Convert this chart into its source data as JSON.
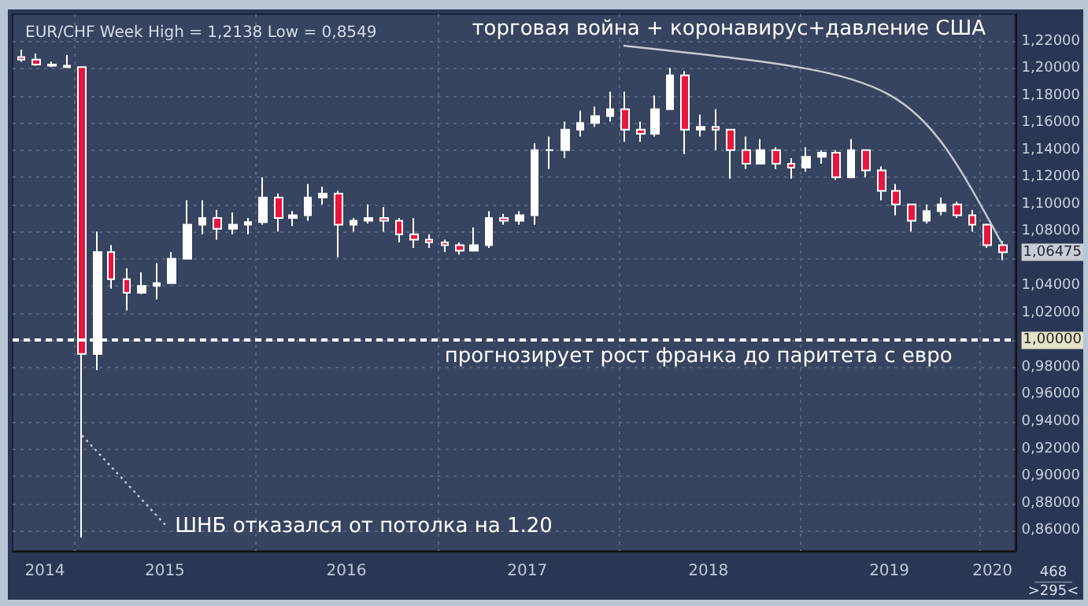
{
  "chart_data": {
    "type": "candlestick",
    "title": "EUR/CHF Week High = 1,2138 Low = 0,8549",
    "x": [
      "2014-09-15",
      "2014-10-15",
      "2014-11-15",
      "2014-12-15",
      "2015-01-15",
      "2015-02-15",
      "2015-03-15",
      "2015-04-15",
      "2015-05-15",
      "2015-06-15",
      "2015-07-15",
      "2015-08-15",
      "2015-09-15",
      "2015-10-15",
      "2015-11-15",
      "2015-12-15",
      "2016-01-15",
      "2016-02-15",
      "2016-03-15",
      "2016-04-15",
      "2016-05-15",
      "2016-06-15",
      "2016-07-15",
      "2016-08-15",
      "2016-09-15",
      "2016-10-15",
      "2016-11-15",
      "2016-12-15",
      "2017-01-15",
      "2017-02-15",
      "2017-03-15",
      "2017-04-15",
      "2017-05-15",
      "2017-06-15",
      "2017-07-15",
      "2017-08-15",
      "2017-09-15",
      "2017-10-15",
      "2017-11-15",
      "2017-12-15",
      "2018-01-15",
      "2018-02-15",
      "2018-03-15",
      "2018-04-15",
      "2018-05-15",
      "2018-06-15",
      "2018-07-15",
      "2018-08-15",
      "2018-09-15",
      "2018-10-15",
      "2018-11-15",
      "2018-12-15",
      "2019-01-15",
      "2019-02-15",
      "2019-03-15",
      "2019-04-15",
      "2019-05-15",
      "2019-06-15",
      "2019-07-15",
      "2019-08-15",
      "2019-09-15",
      "2019-10-15",
      "2019-11-15",
      "2019-12-15",
      "2020-01-15",
      "2020-02-15"
    ],
    "ohlc": [
      [
        1.2085,
        1.2138,
        1.205,
        1.2065
      ],
      [
        1.2065,
        1.211,
        1.202,
        1.203
      ],
      [
        1.203,
        1.205,
        1.201,
        1.202
      ],
      [
        1.202,
        1.21,
        1.2005,
        1.201
      ],
      [
        1.201,
        1.2015,
        0.8549,
        0.99
      ],
      [
        0.99,
        1.08,
        0.978,
        1.065
      ],
      [
        1.065,
        1.07,
        1.038,
        1.045
      ],
      [
        1.045,
        1.053,
        1.022,
        1.035
      ],
      [
        1.035,
        1.05,
        1.034,
        1.04
      ],
      [
        1.04,
        1.057,
        1.03,
        1.042
      ],
      [
        1.042,
        1.065,
        1.042,
        1.06
      ],
      [
        1.06,
        1.103,
        1.06,
        1.085
      ],
      [
        1.085,
        1.103,
        1.078,
        1.09
      ],
      [
        1.09,
        1.096,
        1.074,
        1.082
      ],
      [
        1.082,
        1.094,
        1.078,
        1.085
      ],
      [
        1.085,
        1.09,
        1.078,
        1.087
      ],
      [
        1.087,
        1.12,
        1.085,
        1.105
      ],
      [
        1.105,
        1.108,
        1.08,
        1.09
      ],
      [
        1.09,
        1.095,
        1.084,
        1.092
      ],
      [
        1.092,
        1.115,
        1.088,
        1.105
      ],
      [
        1.105,
        1.113,
        1.1,
        1.108
      ],
      [
        1.108,
        1.11,
        1.061,
        1.085
      ],
      [
        1.085,
        1.09,
        1.08,
        1.088
      ],
      [
        1.088,
        1.1,
        1.086,
        1.09
      ],
      [
        1.09,
        1.098,
        1.08,
        1.088
      ],
      [
        1.088,
        1.09,
        1.072,
        1.078
      ],
      [
        1.078,
        1.09,
        1.068,
        1.074
      ],
      [
        1.074,
        1.078,
        1.068,
        1.072
      ],
      [
        1.072,
        1.074,
        1.065,
        1.07
      ],
      [
        1.07,
        1.072,
        1.063,
        1.066
      ],
      [
        1.066,
        1.083,
        1.066,
        1.07
      ],
      [
        1.07,
        1.095,
        1.068,
        1.09
      ],
      [
        1.09,
        1.093,
        1.085,
        1.088
      ],
      [
        1.088,
        1.095,
        1.085,
        1.092
      ],
      [
        1.092,
        1.145,
        1.085,
        1.14
      ],
      [
        1.14,
        1.15,
        1.126,
        1.14
      ],
      [
        1.14,
        1.161,
        1.134,
        1.155
      ],
      [
        1.155,
        1.169,
        1.15,
        1.16
      ],
      [
        1.16,
        1.172,
        1.157,
        1.165
      ],
      [
        1.165,
        1.183,
        1.161,
        1.17
      ],
      [
        1.17,
        1.183,
        1.146,
        1.155
      ],
      [
        1.155,
        1.161,
        1.146,
        1.152
      ],
      [
        1.152,
        1.18,
        1.15,
        1.17
      ],
      [
        1.17,
        1.2005,
        1.17,
        1.195
      ],
      [
        1.195,
        1.198,
        1.137,
        1.155
      ],
      [
        1.155,
        1.166,
        1.15,
        1.157
      ],
      [
        1.157,
        1.17,
        1.14,
        1.155
      ],
      [
        1.155,
        1.155,
        1.119,
        1.14
      ],
      [
        1.14,
        1.15,
        1.126,
        1.13
      ],
      [
        1.13,
        1.148,
        1.13,
        1.14
      ],
      [
        1.14,
        1.142,
        1.126,
        1.13
      ],
      [
        1.13,
        1.134,
        1.119,
        1.127
      ],
      [
        1.127,
        1.142,
        1.124,
        1.135
      ],
      [
        1.135,
        1.14,
        1.13,
        1.138
      ],
      [
        1.138,
        1.14,
        1.118,
        1.12
      ],
      [
        1.12,
        1.148,
        1.12,
        1.14
      ],
      [
        1.14,
        1.14,
        1.12,
        1.125
      ],
      [
        1.125,
        1.128,
        1.103,
        1.11
      ],
      [
        1.11,
        1.115,
        1.092,
        1.1
      ],
      [
        1.1,
        1.1,
        1.08,
        1.088
      ],
      [
        1.088,
        1.1,
        1.086,
        1.095
      ],
      [
        1.095,
        1.105,
        1.092,
        1.1
      ],
      [
        1.1,
        1.102,
        1.09,
        1.092
      ],
      [
        1.092,
        1.096,
        1.08,
        1.085
      ],
      [
        1.085,
        1.086,
        1.068,
        1.07
      ],
      [
        1.07,
        1.073,
        1.059,
        1.06475
      ]
    ],
    "colors": [
      "#e8163c",
      "#e8163c",
      "#e8163c",
      "#e8163c",
      "#e8163c",
      "#ffffff",
      "#e8163c",
      "#e8163c",
      "#ffffff",
      "#ffffff",
      "#ffffff",
      "#ffffff",
      "#ffffff",
      "#e8163c",
      "#ffffff",
      "#ffffff",
      "#ffffff",
      "#e8163c",
      "#ffffff",
      "#ffffff",
      "#ffffff",
      "#e8163c",
      "#ffffff",
      "#ffffff",
      "#e8163c",
      "#e8163c",
      "#e8163c",
      "#e8163c",
      "#e8163c",
      "#e8163c",
      "#ffffff",
      "#ffffff",
      "#e8163c",
      "#ffffff",
      "#ffffff",
      "#ffffff",
      "#ffffff",
      "#ffffff",
      "#ffffff",
      "#ffffff",
      "#e8163c",
      "#e8163c",
      "#ffffff",
      "#ffffff",
      "#e8163c",
      "#ffffff",
      "#e8163c",
      "#e8163c",
      "#e8163c",
      "#ffffff",
      "#e8163c",
      "#e8163c",
      "#ffffff",
      "#ffffff",
      "#e8163c",
      "#ffffff",
      "#e8163c",
      "#e8163c",
      "#e8163c",
      "#e8163c",
      "#ffffff",
      "#ffffff",
      "#e8163c",
      "#e8163c",
      "#e8163c",
      "#e8163c"
    ],
    "xlim": [
      "2014-08-28",
      "2020-03-11"
    ],
    "xticks": [
      {
        "value": "2014-11-01",
        "label": "2014"
      },
      {
        "value": "2015-01-01",
        "label": null
      },
      {
        "value": "2015-07-01",
        "label": "2015"
      },
      {
        "value": "2016-01-01",
        "label": null
      },
      {
        "value": "2016-07-01",
        "label": "2016"
      },
      {
        "value": "2017-01-01",
        "label": null
      },
      {
        "value": "2017-07-01",
        "label": "2017"
      },
      {
        "value": "2018-01-01",
        "label": null
      },
      {
        "value": "2018-07-01",
        "label": "2018"
      },
      {
        "value": "2019-01-01",
        "label": null
      },
      {
        "value": "2019-07-01",
        "label": "2019"
      },
      {
        "value": "2020-01-01",
        "label": null
      },
      {
        "value": "2020-01-25",
        "label": "2020"
      }
    ],
    "ylim": [
      0.845,
      1.24
    ],
    "yticks": [
      {
        "value": 0.86,
        "label": "0,86000"
      },
      {
        "value": 0.88,
        "label": "0,88000"
      },
      {
        "value": 0.9,
        "label": "0,90000"
      },
      {
        "value": 0.92,
        "label": "0,92000"
      },
      {
        "value": 0.94,
        "label": "0,94000"
      },
      {
        "value": 0.96,
        "label": "0,96000"
      },
      {
        "value": 0.98,
        "label": "0,98000"
      },
      {
        "value": 1.0,
        "label": "1,00000"
      },
      {
        "value": 1.02,
        "label": "1,02000"
      },
      {
        "value": 1.04,
        "label": "1,04000"
      },
      {
        "value": 1.06,
        "label": null
      },
      {
        "value": 1.06475,
        "label": "1,06475"
      },
      {
        "value": 1.08,
        "label": "1,08000"
      },
      {
        "value": 1.1,
        "label": "1,10000"
      },
      {
        "value": 1.12,
        "label": "1,12000"
      },
      {
        "value": 1.14,
        "label": "1,14000"
      },
      {
        "value": 1.16,
        "label": "1,16000"
      },
      {
        "value": 1.18,
        "label": "1,18000"
      },
      {
        "value": 1.2,
        "label": "1,20000"
      },
      {
        "value": 1.22,
        "label": "1,22000"
      }
    ],
    "grid": true,
    "ref_lines": [
      {
        "axis": "y",
        "value": 1.0,
        "label": "прогнозирует рост франка до паритета с евро",
        "color": "#ffffff",
        "line_style": "dashed"
      }
    ],
    "annotations": [
      {
        "text": "торговая война + коронавирус+давление США",
        "x": "2020-02-15",
        "y": 1.07
      },
      {
        "text": "ШНБ отказался от потолка на 1.20",
        "x": "2015-01-15",
        "y": 0.93
      },
      "468",
      ">295<"
    ]
  }
}
